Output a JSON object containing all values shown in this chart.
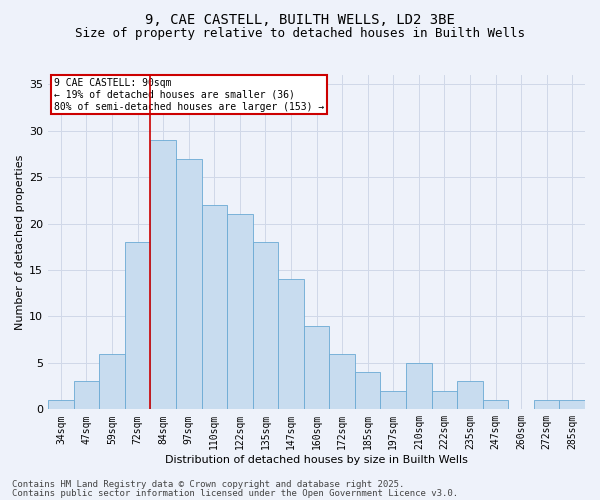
{
  "title_line1": "9, CAE CASTELL, BUILTH WELLS, LD2 3BE",
  "title_line2": "Size of property relative to detached houses in Builth Wells",
  "xlabel": "Distribution of detached houses by size in Builth Wells",
  "ylabel": "Number of detached properties",
  "bar_labels": [
    "34sqm",
    "47sqm",
    "59sqm",
    "72sqm",
    "84sqm",
    "97sqm",
    "110sqm",
    "122sqm",
    "135sqm",
    "147sqm",
    "160sqm",
    "172sqm",
    "185sqm",
    "197sqm",
    "210sqm",
    "222sqm",
    "235sqm",
    "247sqm",
    "260sqm",
    "272sqm",
    "285sqm"
  ],
  "bar_values": [
    1,
    3,
    6,
    18,
    29,
    27,
    22,
    21,
    18,
    14,
    9,
    6,
    4,
    2,
    5,
    2,
    3,
    1,
    0,
    1,
    1
  ],
  "bar_color": "#C8DCEF",
  "bar_edge_color": "#6aaad4",
  "property_line_index": 4,
  "annotation_text": "9 CAE CASTELL: 90sqm\n← 19% of detached houses are smaller (36)\n80% of semi-detached houses are larger (153) →",
  "annotation_box_color": "#ffffff",
  "annotation_box_edge_color": "#cc0000",
  "line_color": "#cc0000",
  "ylim": [
    0,
    36
  ],
  "yticks": [
    0,
    5,
    10,
    15,
    20,
    25,
    30,
    35
  ],
  "grid_color": "#d0d8e8",
  "background_color": "#eef2fa",
  "footer_line1": "Contains HM Land Registry data © Crown copyright and database right 2025.",
  "footer_line2": "Contains public sector information licensed under the Open Government Licence v3.0.",
  "title_fontsize": 10,
  "subtitle_fontsize": 9,
  "axis_label_fontsize": 8,
  "tick_fontsize": 7,
  "annotation_fontsize": 7,
  "footer_fontsize": 6.5
}
